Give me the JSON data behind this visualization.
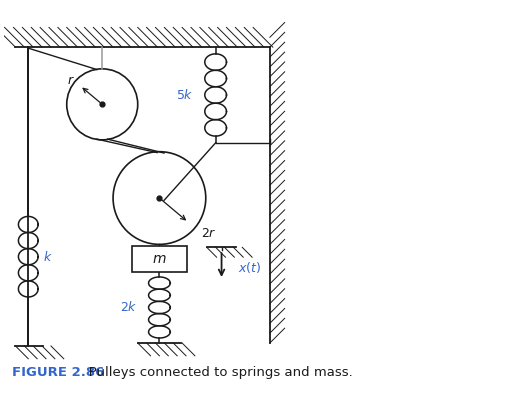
{
  "bg_color": "#ffffff",
  "line_color": "#1a1a1a",
  "blue_color": "#3366cc",
  "fig_width": 5.21,
  "fig_height": 4.0,
  "title": "FIGURE 2.86",
  "caption": "   Pulleys connected to springs and mass."
}
